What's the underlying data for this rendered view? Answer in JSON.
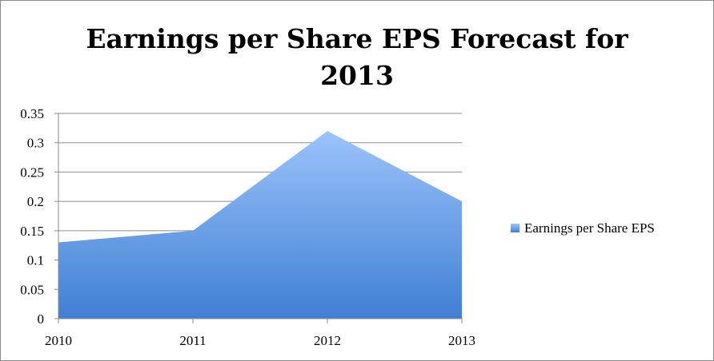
{
  "chart_data": {
    "type": "area",
    "title": "Earnings per Share EPS Forecast for 2013",
    "title_lines": [
      "Earnings per Share EPS Forecast for",
      "2013"
    ],
    "categories": [
      "2010",
      "2011",
      "2012",
      "2013"
    ],
    "series": [
      {
        "name": "Earnings per Share EPS",
        "values": [
          0.13,
          0.15,
          0.32,
          0.2
        ]
      }
    ],
    "ylim": [
      0,
      0.35
    ],
    "y_ticks": [
      "0",
      "0.05",
      "0.1",
      "0.15",
      "0.2",
      "0.25",
      "0.3",
      "0.35"
    ],
    "y_tick_values": [
      0,
      0.05,
      0.1,
      0.15,
      0.2,
      0.25,
      0.3,
      0.35
    ],
    "grid": true,
    "legend_position": "right",
    "colors": {
      "area_top": "#9cc3fb",
      "area_bottom": "#3f7fd3",
      "grid": "#8c8c8c"
    }
  }
}
